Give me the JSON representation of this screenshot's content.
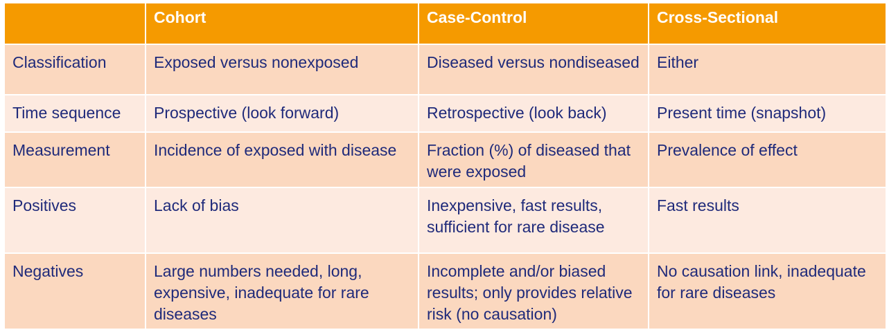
{
  "table": {
    "columns": [
      "Cohort",
      "Case-Control",
      "Cross-Sectional"
    ],
    "rows": [
      [
        "Classification",
        "Exposed versus nonexposed",
        "Diseased versus nondiseased",
        "Either"
      ],
      [
        "Time sequence",
        "Prospective (look forward)",
        "Retrospective (look back)",
        "Present time (snapshot)"
      ],
      [
        "Measurement",
        "Incidence of exposed with disease",
        "Fraction (%) of diseased that were exposed",
        "Prevalence of effect"
      ],
      [
        "Positives",
        "Lack of bias",
        "Inexpensive, fast results, sufficient for rare disease",
        "Fast results"
      ],
      [
        "Negatives",
        "Large numbers needed, long, expensive, inadequate for rare diseases",
        "Incomplete and/or biased results; only provides relative risk (no causation)",
        "No causation link, inadequate for rare diseases"
      ]
    ]
  }
}
